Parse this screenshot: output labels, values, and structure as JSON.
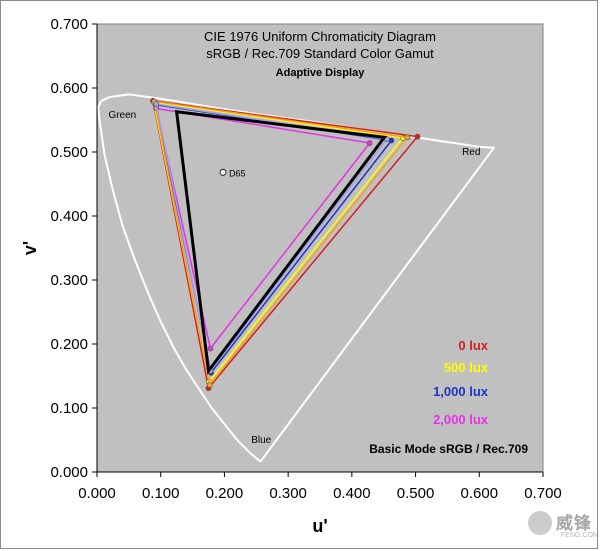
{
  "chart_data": {
    "type": "scatter",
    "title": "CIE 1976 Uniform Chromaticity Diagram",
    "subtitle": "sRGB / Rec.709 Standard Color Gamut",
    "subsubtitle": "Adaptive Display",
    "xlabel": "u'",
    "ylabel": "v'",
    "xlim": [
      0.0,
      0.7
    ],
    "ylim": [
      0.0,
      0.7
    ],
    "x_ticks": [
      "0.000",
      "0.100",
      "0.200",
      "0.300",
      "0.400",
      "0.500",
      "0.600",
      "0.700"
    ],
    "y_ticks": [
      "0.000",
      "0.100",
      "0.200",
      "0.300",
      "0.400",
      "0.500",
      "0.600",
      "0.700"
    ],
    "region_labels": {
      "green": "Green",
      "red": "Red",
      "blue": "Blue"
    },
    "white_point": {
      "label": "D65",
      "u": 0.1978,
      "v": 0.4683
    },
    "spectral_locus": [
      [
        0.2568,
        0.0165
      ],
      [
        0.253,
        0.019
      ],
      [
        0.24,
        0.03
      ],
      [
        0.22,
        0.05
      ],
      [
        0.2,
        0.075
      ],
      [
        0.18,
        0.1
      ],
      [
        0.16,
        0.13
      ],
      [
        0.14,
        0.16
      ],
      [
        0.12,
        0.195
      ],
      [
        0.1,
        0.235
      ],
      [
        0.08,
        0.28
      ],
      [
        0.06,
        0.33
      ],
      [
        0.04,
        0.385
      ],
      [
        0.025,
        0.44
      ],
      [
        0.012,
        0.495
      ],
      [
        0.004,
        0.55
      ],
      [
        0.002,
        0.57
      ],
      [
        0.007,
        0.58
      ],
      [
        0.02,
        0.586
      ],
      [
        0.05,
        0.59
      ],
      [
        0.08,
        0.586
      ],
      [
        0.12,
        0.58
      ],
      [
        0.18,
        0.57
      ],
      [
        0.26,
        0.558
      ],
      [
        0.34,
        0.547
      ],
      [
        0.42,
        0.535
      ],
      [
        0.5,
        0.523
      ],
      [
        0.56,
        0.514
      ],
      [
        0.6,
        0.508
      ],
      [
        0.623,
        0.5065
      ]
    ],
    "series": [
      {
        "name": "0 lux",
        "color": "#d21e1e",
        "stroke_width": 1.5,
        "points": [
          [
            0.503,
            0.524
          ],
          [
            0.088,
            0.58
          ],
          [
            0.175,
            0.131
          ]
        ]
      },
      {
        "name": "500 lux",
        "color": "#ffff00",
        "stroke_width": 1.5,
        "points": [
          [
            0.48,
            0.522
          ],
          [
            0.089,
            0.578
          ],
          [
            0.176,
            0.141
          ]
        ]
      },
      {
        "name": "1,000 lux",
        "color": "#1e32c8",
        "stroke_width": 1.5,
        "points": [
          [
            0.462,
            0.518
          ],
          [
            0.092,
            0.574
          ],
          [
            0.179,
            0.155
          ]
        ]
      },
      {
        "name": "2,000 lux",
        "color": "#e632e6",
        "stroke_width": 1.5,
        "points": [
          [
            0.428,
            0.514
          ],
          [
            0.093,
            0.568
          ],
          [
            0.178,
            0.193
          ]
        ]
      },
      {
        "name": "",
        "color": "#f0a028",
        "stroke_width": 1.5,
        "points": [
          [
            0.487,
            0.523
          ],
          [
            0.09,
            0.579
          ],
          [
            0.177,
            0.136
          ]
        ]
      },
      {
        "name": "",
        "color": "#a0a0f0",
        "stroke_width": 1.5,
        "points": [
          [
            0.455,
            0.52
          ],
          [
            0.093,
            0.575
          ],
          [
            0.178,
            0.158
          ]
        ]
      },
      {
        "name": "Basic Mode  sRGB / Rec.709",
        "color": "#000000",
        "stroke_width": 3,
        "points": [
          [
            0.451,
            0.523
          ],
          [
            0.125,
            0.563
          ],
          [
            0.175,
            0.158
          ]
        ]
      }
    ],
    "legend": {
      "placement": "bottom-right",
      "entries": [
        {
          "label": "0 lux",
          "color": "#d21e1e"
        },
        {
          "label": "500 lux",
          "color": "#ffff00"
        },
        {
          "label": "1,000 lux",
          "color": "#1e32c8"
        },
        {
          "label": "2,000 lux",
          "color": "#e632e6"
        },
        {
          "label": "Basic Mode  sRGB / Rec.709",
          "color": "#000000"
        }
      ]
    },
    "plot_background": "#c0c0c0",
    "grid": false
  },
  "watermark": {
    "text": "威锋",
    "subtext": "FENG.COM"
  }
}
